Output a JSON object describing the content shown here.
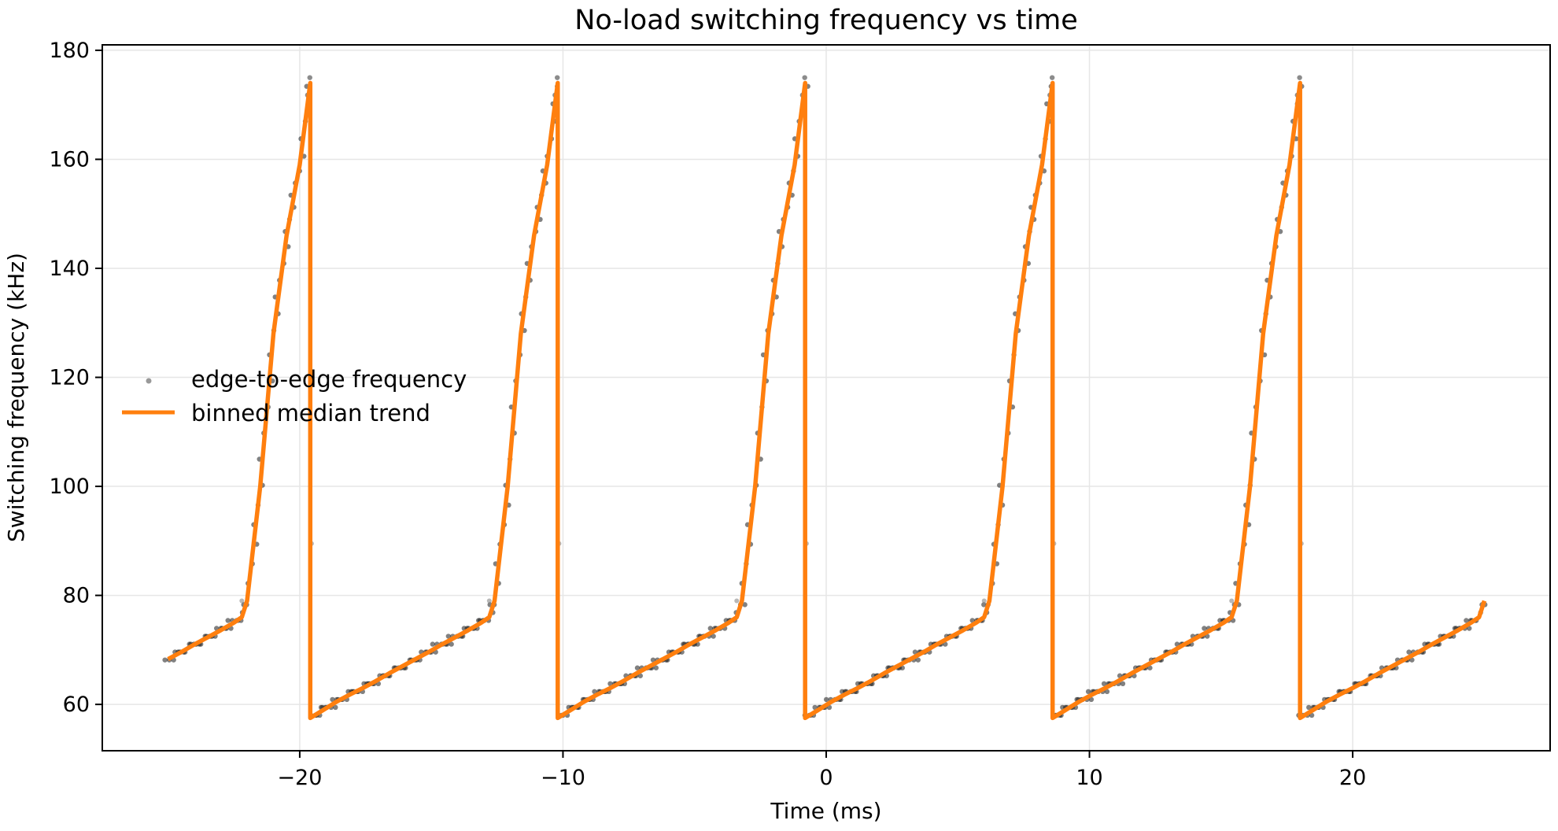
{
  "chart_data": {
    "type": "scatter",
    "title": "No-load switching frequency vs time",
    "xlabel": "Time (ms)",
    "ylabel": "Switching frequency (kHz)",
    "xlim": [
      -27.5,
      27.5
    ],
    "ylim": [
      51.5,
      181
    ],
    "xticks": [
      -20,
      -10,
      0,
      10,
      20
    ],
    "xtick_labels": [
      "−20",
      "−10",
      "0",
      "10",
      "20"
    ],
    "yticks": [
      60,
      80,
      100,
      120,
      140,
      160,
      180
    ],
    "ytick_labels": [
      "60",
      "80",
      "100",
      "120",
      "140",
      "160",
      "180"
    ],
    "grid": true,
    "legend_position": "center-left",
    "period_ms": 9.4,
    "cycle_peaks_ms": [
      -19.6,
      -10.2,
      -0.8,
      8.6,
      18.0
    ],
    "x_range_ms": [
      -25,
      25
    ],
    "one_cycle_trend": {
      "t_ms": [
        0,
        0.5,
        1,
        1.5,
        2,
        2.5,
        3,
        3.5,
        4,
        4.5,
        5,
        5.5,
        6,
        6.5,
        6.8,
        7.0,
        7.5,
        8.0,
        8.5,
        9.0,
        9.4
      ],
      "khz": [
        57.5,
        59.0,
        60.5,
        61.8,
        63.0,
        64.3,
        65.7,
        67.0,
        68.3,
        69.6,
        71.0,
        72.3,
        73.6,
        75.0,
        76.0,
        79.0,
        100.0,
        128.0,
        146.0,
        159.0,
        174.0
      ]
    },
    "series": [
      {
        "name": "edge-to-edge frequency",
        "kind": "scatter",
        "color": "#555555",
        "points_per_cycle": 110,
        "outliers_khz": [
          89.5,
          79.0,
          171.0
        ]
      },
      {
        "name": "binned median trend",
        "kind": "line",
        "color": "#ff7f0e"
      }
    ]
  }
}
